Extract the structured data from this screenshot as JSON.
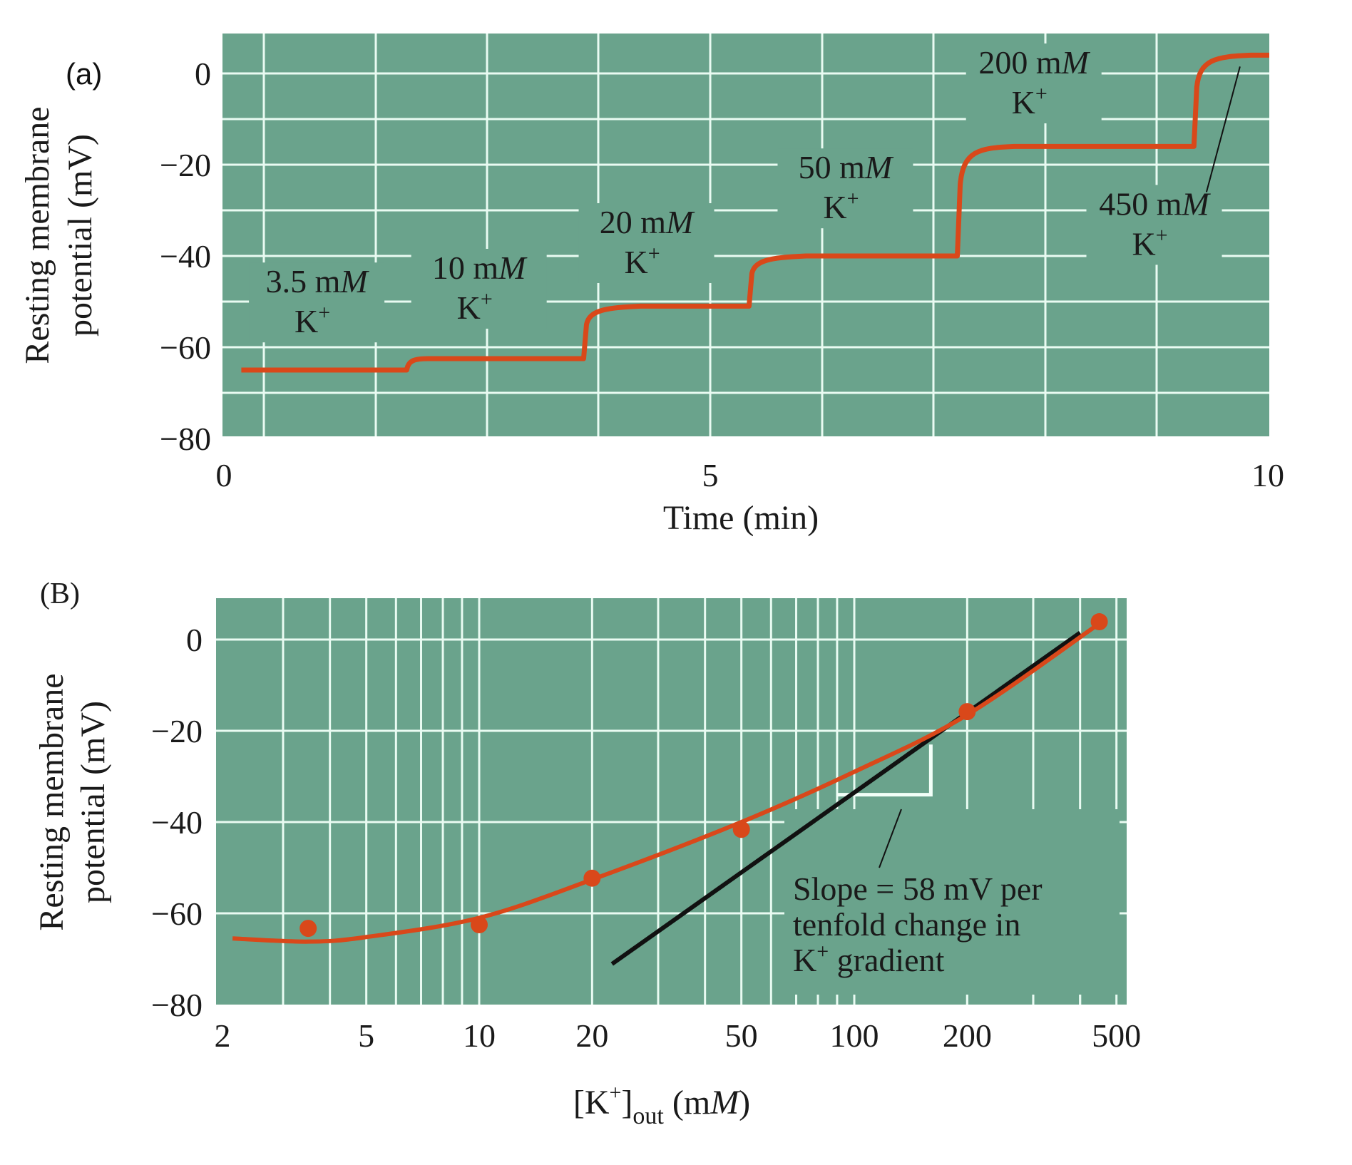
{
  "colors": {
    "plot_bg": "#6aa38c",
    "grid": "#e9fbf2",
    "trace": "#d9481a",
    "fit_line": "#111111",
    "text": "#1a1a1a"
  },
  "chart_data": [
    {
      "panel_label": "(a)",
      "type": "line",
      "title": "",
      "xlabel": "Time (min)",
      "ylabel_lines": [
        "Resting membrane",
        "potential (mV)"
      ],
      "xlim": [
        0,
        10
      ],
      "ylim": [
        -80,
        8.75
      ],
      "xticks": [
        0,
        5,
        10
      ],
      "xtick_labels": [
        "0",
        "5",
        "10"
      ],
      "yticks": [
        0,
        -20,
        -40,
        -60,
        -80
      ],
      "ytick_labels": [
        "0",
        "−20",
        "−40",
        "−60",
        "−80"
      ],
      "grid": true,
      "series": [
        {
          "name": "Membrane potential trace",
          "steps": [
            {
              "start_min": 0.18,
              "end_min": 1.76,
              "mV": -65,
              "label_line1": "3.5 mM",
              "label_line2": "K+"
            },
            {
              "start_min": 1.76,
              "end_min": 3.45,
              "mV": -62.5,
              "label_line1": "10 mM",
              "label_line2": "K+"
            },
            {
              "start_min": 3.45,
              "end_min": 5.03,
              "mV": -51,
              "label_line1": "20 mM",
              "label_line2": "K+"
            },
            {
              "start_min": 5.03,
              "end_min": 7.02,
              "mV": -40,
              "label_line1": "50 mM",
              "label_line2": "K+"
            },
            {
              "start_min": 7.02,
              "end_min": 9.28,
              "mV": -16,
              "label_line1": "200 mM",
              "label_line2": "K+"
            },
            {
              "start_min": 9.28,
              "end_min": 10.0,
              "mV": 4,
              "label_line1": "450 mM",
              "label_line2": "K+"
            }
          ]
        }
      ],
      "annotations": [
        {
          "text_num": "3.5 m",
          "text_unit": "M",
          "sup_line": "K",
          "sup": "+",
          "x": 0.9,
          "y": -48
        },
        {
          "text_num": "10 m",
          "text_unit": "M",
          "sup_line": "K",
          "sup": "+",
          "x": 2.45,
          "y": -45
        },
        {
          "text_num": "20 m",
          "text_unit": "M",
          "sup_line": "K",
          "sup": "+",
          "x": 4.05,
          "y": -35
        },
        {
          "text_num": "50 m",
          "text_unit": "M",
          "sup_line": "K",
          "sup": "+",
          "x": 5.95,
          "y": -23
        },
        {
          "text_num": "200 m",
          "text_unit": "M",
          "sup_line": "K",
          "sup": "+",
          "x": 7.75,
          "y": 0
        },
        {
          "text_num": "450 m",
          "text_unit": "M",
          "sup_line": "K",
          "sup": "+",
          "x": 8.9,
          "y": -31
        }
      ],
      "leader_line_450": {
        "from": [
          9.72,
          1.5
        ],
        "to": [
          9.4,
          -26
        ]
      }
    },
    {
      "panel_label": "(B)",
      "type": "scatter",
      "title": "",
      "xlabel_main": "[K",
      "xlabel_sup": "+",
      "xlabel_close": "]",
      "xlabel_sub": "out",
      "xlabel_unit_pre": " (m",
      "xlabel_unit_ital": "M",
      "xlabel_unit_post": ")",
      "ylabel_lines": [
        "Resting membrane",
        "potential (mV)"
      ],
      "xscale": "log",
      "xlim": [
        2,
        530
      ],
      "ylim": [
        -80,
        9
      ],
      "xticks": [
        2,
        5,
        10,
        20,
        50,
        100,
        200,
        500
      ],
      "xtick_labels": [
        "2",
        "5",
        "10",
        "20",
        "50",
        "100",
        "200",
        "500"
      ],
      "yticks": [
        0,
        -20,
        -40,
        -60,
        -80
      ],
      "ytick_labels": [
        "0",
        "−20",
        "−40",
        "−60",
        "−80"
      ],
      "grid": true,
      "series": [
        {
          "name": "Measured",
          "x": [
            3.5,
            10,
            20,
            50,
            200,
            450
          ],
          "y": [
            -63.3,
            -62.5,
            -52.3,
            -41.6,
            -15.8,
            3.9
          ]
        },
        {
          "name": "Fitted curve",
          "x": [
            2.2,
            3.5,
            5,
            10,
            20,
            50,
            100,
            200,
            450
          ],
          "y": [
            -65.5,
            -66.2,
            -65.2,
            -61,
            -52.6,
            -40,
            -29,
            -16.5,
            3.5
          ]
        },
        {
          "name": "Nernst slope line",
          "x": [
            22.6,
            400
          ],
          "y": [
            -71.1,
            1.5
          ]
        }
      ],
      "slope_triangle": {
        "x_left": 90,
        "x_right": 160,
        "y_top": -23,
        "y_bottom": -34
      },
      "annotation_lines": [
        "Slope = 58 mV per",
        "tenfold change in",
        "K",
        "+",
        " gradient"
      ]
    }
  ]
}
